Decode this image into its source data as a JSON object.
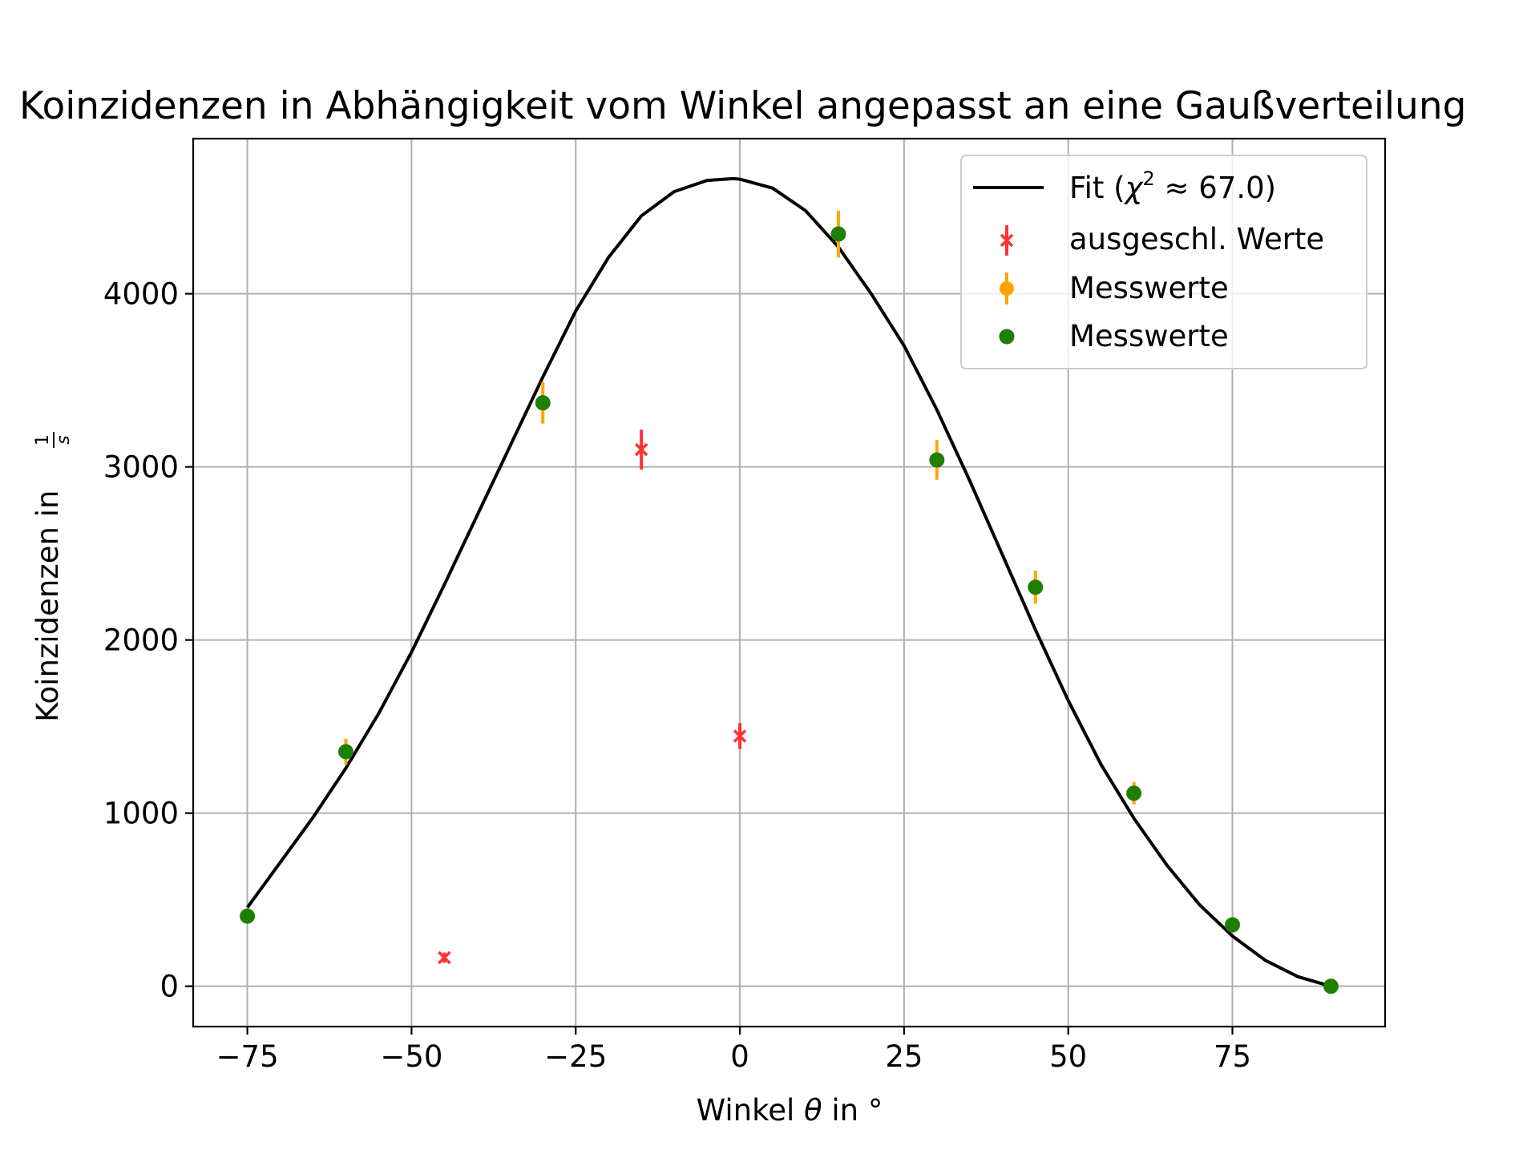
{
  "chart_data": {
    "type": "scatter",
    "title": "Koinzidenzen in Abhängigkeit vom Winkel angepasst an eine Gaußverteilung",
    "xlabel_prefix": "Winkel ",
    "xlabel_symbol": "θ",
    "xlabel_suffix": " in °",
    "ylabel_text": "Koinzidenzen in ",
    "ylabel_frac_num": "1",
    "ylabel_frac_den": "s",
    "xlim": [
      -83.25,
      98.25
    ],
    "ylim": [
      -233,
      4896
    ],
    "xticks": [
      -75,
      -50,
      -25,
      0,
      25,
      50,
      75
    ],
    "xtick_labels": [
      "−75",
      "−50",
      "−25",
      "0",
      "25",
      "50",
      "75"
    ],
    "yticks": [
      0,
      1000,
      2000,
      3000,
      4000
    ],
    "ytick_labels": [
      "0",
      "1000",
      "2000",
      "3000",
      "4000"
    ],
    "grid": true,
    "legend_position": "top-right",
    "fit": {
      "type": "line",
      "color": "#000000",
      "legend_prefix": "Fit (",
      "legend_chi": "χ",
      "legend_sup": "2",
      "legend_suffix": " ≈ 67.0)",
      "x": [
        -75,
        -70,
        -65,
        -60,
        -55,
        -50,
        -45,
        -40,
        -35,
        -30,
        -25,
        -20,
        -15,
        -10,
        -5,
        -1,
        0,
        5,
        10,
        15,
        20,
        25,
        30,
        35,
        40,
        45,
        50,
        55,
        60,
        65,
        70,
        75,
        80,
        85,
        90
      ],
      "y": [
        455,
        715,
        975,
        1260,
        1575,
        1930,
        2320,
        2720,
        3120,
        3520,
        3900,
        4210,
        4450,
        4590,
        4655,
        4665,
        4662,
        4610,
        4480,
        4270,
        4000,
        3700,
        3330,
        2920,
        2490,
        2060,
        1650,
        1280,
        970,
        700,
        470,
        290,
        150,
        55,
        0
      ]
    },
    "series": [
      {
        "name": "ausgeschl. Werte",
        "marker": "x",
        "color": "#ff3333",
        "x": [
          -45,
          -15,
          0
        ],
        "y": [
          165,
          3100,
          1445
        ],
        "yerr": [
          30,
          115,
          75
        ]
      },
      {
        "name": "Messwerte",
        "marker": "o",
        "color": "#ffa500",
        "x": [
          -75,
          -60,
          -30,
          15,
          30,
          45,
          60,
          75,
          90
        ],
        "y": [
          405,
          1355,
          3370,
          4345,
          3040,
          2305,
          1115,
          355,
          0
        ],
        "yerr": [
          20,
          75,
          120,
          135,
          115,
          95,
          65,
          20,
          0
        ]
      },
      {
        "name": "Messwerte",
        "marker": "o",
        "color": "#1e8000",
        "x": [
          -75,
          -60,
          -30,
          15,
          30,
          45,
          60,
          75,
          90
        ],
        "y": [
          405,
          1355,
          3370,
          4345,
          3040,
          2305,
          1115,
          355,
          0
        ]
      }
    ]
  }
}
